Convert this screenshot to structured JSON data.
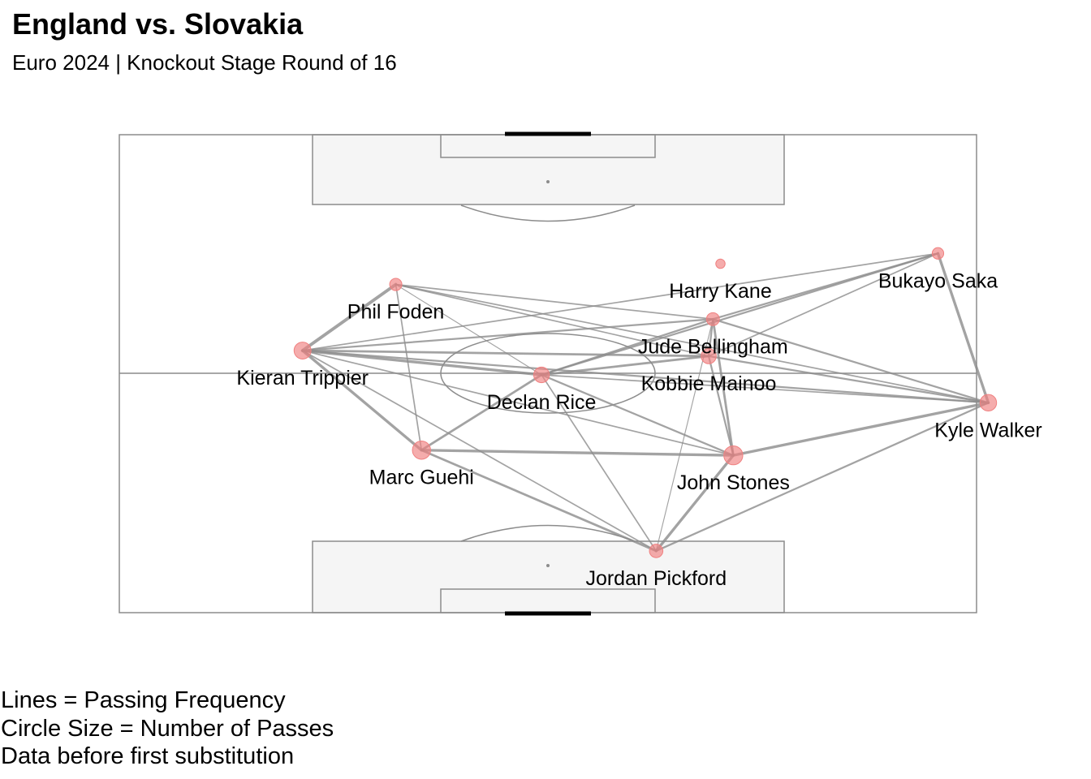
{
  "title": "England vs. Slovakia",
  "subtitle": "Euro 2024 | Knockout Stage Round of 16",
  "caption": [
    "Lines = Passing Frequency",
    "Circle Size = Number of Passes",
    "Data before first substitution"
  ],
  "chart_data": {
    "type": "network",
    "title": "England vs. Slovakia",
    "subtitle": "Euro 2024 | Knockout Stage Round of 16",
    "node_color": "#f08080",
    "edge_color": "#8c8c8c",
    "pitch": {
      "length": 120,
      "width": 80,
      "attacking_direction": "up"
    },
    "nodes": [
      {
        "name": "Harry Kane",
        "x": 87.6,
        "y": 56.1,
        "passes": 5
      },
      {
        "name": "Bukayo Saka",
        "x": 90.2,
        "y": 76.4,
        "passes": 10
      },
      {
        "name": "Phil Foden",
        "x": 82.4,
        "y": 25.8,
        "passes": 12
      },
      {
        "name": "Jude Bellingham",
        "x": 73.7,
        "y": 55.4,
        "passes": 14
      },
      {
        "name": "Kieran Trippier",
        "x": 65.8,
        "y": 17.1,
        "passes": 30
      },
      {
        "name": "Kobbie Mainoo",
        "x": 64.4,
        "y": 55.0,
        "passes": 22
      },
      {
        "name": "Declan Rice",
        "x": 59.7,
        "y": 39.4,
        "passes": 24
      },
      {
        "name": "Kyle Walker",
        "x": 52.7,
        "y": 81.1,
        "passes": 28
      },
      {
        "name": "Marc Guehi",
        "x": 40.8,
        "y": 28.2,
        "passes": 36
      },
      {
        "name": "John Stones",
        "x": 39.5,
        "y": 57.3,
        "passes": 40
      },
      {
        "name": "Jordan Pickford",
        "x": 15.5,
        "y": 50.1,
        "passes": 16
      }
    ],
    "edges": [
      {
        "from": "Kieran Trippier",
        "to": "Phil Foden",
        "count": 6
      },
      {
        "from": "Kieran Trippier",
        "to": "Declan Rice",
        "count": 5
      },
      {
        "from": "Kieran Trippier",
        "to": "Marc Guehi",
        "count": 5
      },
      {
        "from": "Kieran Trippier",
        "to": "Kobbie Mainoo",
        "count": 4
      },
      {
        "from": "Kieran Trippier",
        "to": "Jude Bellingham",
        "count": 3
      },
      {
        "from": "Kieran Trippier",
        "to": "Kyle Walker",
        "count": 3
      },
      {
        "from": "Kieran Trippier",
        "to": "John Stones",
        "count": 2
      },
      {
        "from": "Kieran Trippier",
        "to": "Bukayo Saka",
        "count": 2
      },
      {
        "from": "Kieran Trippier",
        "to": "Jordan Pickford",
        "count": 2
      },
      {
        "from": "Phil Foden",
        "to": "Kyle Walker",
        "count": 2
      },
      {
        "from": "Phil Foden",
        "to": "Marc Guehi",
        "count": 2
      },
      {
        "from": "Phil Foden",
        "to": "Jude Bellingham",
        "count": 2
      },
      {
        "from": "Phil Foden",
        "to": "Kobbie Mainoo",
        "count": 2
      },
      {
        "from": "Phil Foden",
        "to": "Declan Rice",
        "count": 1
      },
      {
        "from": "Declan Rice",
        "to": "Marc Guehi",
        "count": 4
      },
      {
        "from": "Declan Rice",
        "to": "Kobbie Mainoo",
        "count": 4
      },
      {
        "from": "Declan Rice",
        "to": "John Stones",
        "count": 3
      },
      {
        "from": "Declan Rice",
        "to": "Jude Bellingham",
        "count": 3
      },
      {
        "from": "Declan Rice",
        "to": "Bukayo Saka",
        "count": 3
      },
      {
        "from": "Declan Rice",
        "to": "Kyle Walker",
        "count": 2
      },
      {
        "from": "Declan Rice",
        "to": "Jordan Pickford",
        "count": 2
      },
      {
        "from": "Marc Guehi",
        "to": "John Stones",
        "count": 5
      },
      {
        "from": "Marc Guehi",
        "to": "Jordan Pickford",
        "count": 4
      },
      {
        "from": "John Stones",
        "to": "Kyle Walker",
        "count": 5
      },
      {
        "from": "John Stones",
        "to": "Jordan Pickford",
        "count": 5
      },
      {
        "from": "John Stones",
        "to": "Jude Bellingham",
        "count": 4
      },
      {
        "from": "John Stones",
        "to": "Kobbie Mainoo",
        "count": 3
      },
      {
        "from": "Jordan Pickford",
        "to": "Kyle Walker",
        "count": 3
      },
      {
        "from": "Jordan Pickford",
        "to": "Jude Bellingham",
        "count": 1
      },
      {
        "from": "Kyle Walker",
        "to": "Bukayo Saka",
        "count": 5
      },
      {
        "from": "Kyle Walker",
        "to": "Jude Bellingham",
        "count": 3
      },
      {
        "from": "Kyle Walker",
        "to": "Kobbie Mainoo",
        "count": 3
      },
      {
        "from": "Jude Bellingham",
        "to": "Bukayo Saka",
        "count": 3
      },
      {
        "from": "Jude Bellingham",
        "to": "Kobbie Mainoo",
        "count": 3
      },
      {
        "from": "Kobbie Mainoo",
        "to": "Bukayo Saka",
        "count": 2
      }
    ]
  }
}
